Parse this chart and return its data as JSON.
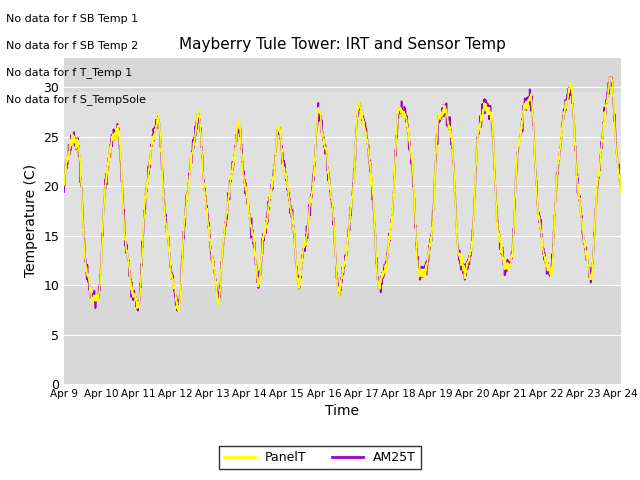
{
  "title": "Mayberry Tule Tower: IRT and Sensor Temp",
  "xlabel": "Time",
  "ylabel": "Temperature (C)",
  "ylim": [
    0,
    33
  ],
  "x_tick_labels": [
    "Apr 9",
    "Apr 10",
    "Apr 11",
    "Apr 12",
    "Apr 13",
    "Apr 14",
    "Apr 15",
    "Apr 16",
    "Apr 17",
    "Apr 18",
    "Apr 19",
    "Apr 20",
    "Apr 21",
    "Apr 22",
    "Apr 23",
    "Apr 24"
  ],
  "no_data_messages": [
    "No data for f SB Temp 1",
    "No data for f SB Temp 2",
    "No data for f T_Temp 1",
    "No data for f S_TempSole"
  ],
  "panel_color": "#ffff00",
  "am25t_color": "#9900cc",
  "legend_labels": [
    "PanelT",
    "AM25T"
  ],
  "shaded_region_low": 10,
  "shaded_region_high": 29.5,
  "shaded_color": "#e0e0e0",
  "grid_color": "#ffffff",
  "axes_bg": "#d8d8d8",
  "fig_bg": "#ffffff"
}
